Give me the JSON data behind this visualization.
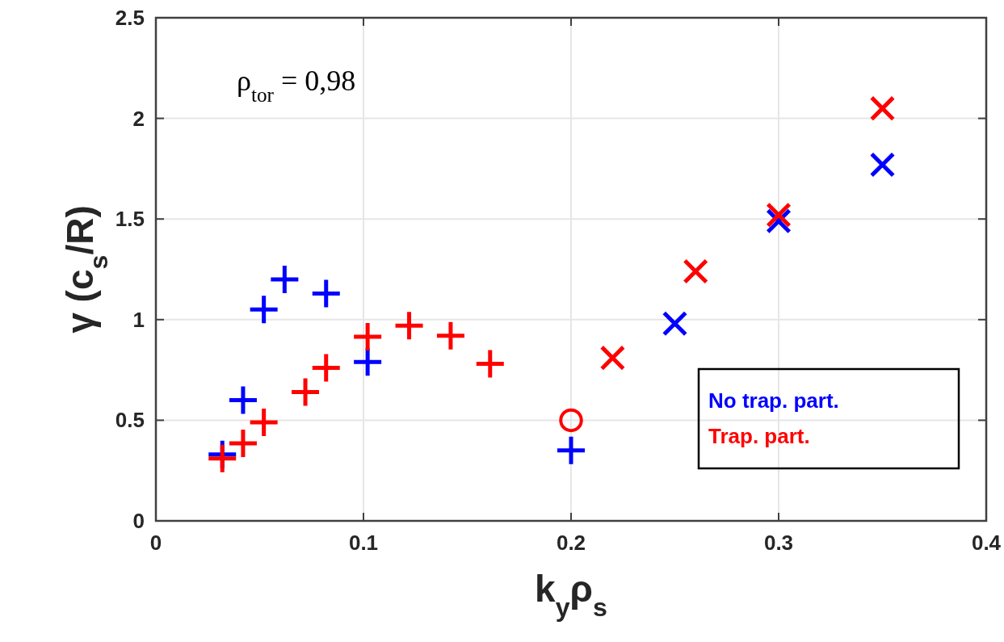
{
  "chart_data": {
    "type": "scatter",
    "xlabel": "k$_{y}$ρ$_{s}$",
    "ylabel": "γ (c$_{s}$/R)",
    "xlim": [
      0,
      0.4
    ],
    "xticks": [
      0,
      0.1,
      0.2,
      0.3,
      0.4
    ],
    "ylim": [
      0,
      2.5
    ],
    "yticks": [
      0,
      0.5,
      1,
      1.5,
      2,
      2.5
    ],
    "grid": true,
    "annotations": [
      "ρ$_{tor}$ = 0,98"
    ],
    "series": [
      {
        "name": "No trap. part.",
        "color": "#0000ff",
        "x": [
          0.032,
          0.042,
          0.052,
          0.062,
          0.082,
          0.102,
          0.2
        ],
        "values": [
          0.33,
          0.6,
          1.05,
          1.2,
          1.13,
          0.79,
          0.35
        ]
      },
      {
        "color": "#0000ff",
        "marker": "cross",
        "x": [
          0.25,
          0.3,
          0.35
        ],
        "values": [
          0.98,
          1.49,
          1.77
        ]
      },
      {
        "name": "Trap. part.",
        "color": "#ff0000",
        "x": [
          0.032,
          0.042,
          0.052,
          0.072,
          0.082,
          0.102,
          0.122,
          0.142,
          0.161
        ],
        "values": [
          0.31,
          0.385,
          0.49,
          0.64,
          0.76,
          0.915,
          0.97,
          0.92,
          0.78
        ]
      },
      {
        "color": "#ff0000",
        "marker": "circle",
        "x": [
          0.2
        ],
        "values": [
          0.5
        ]
      },
      {
        "color": "#ff0000",
        "marker": "cross",
        "x": [
          0.22,
          0.26,
          0.3,
          0.35
        ],
        "values": [
          0.81,
          1.24,
          1.52,
          2.05
        ]
      }
    ]
  }
}
